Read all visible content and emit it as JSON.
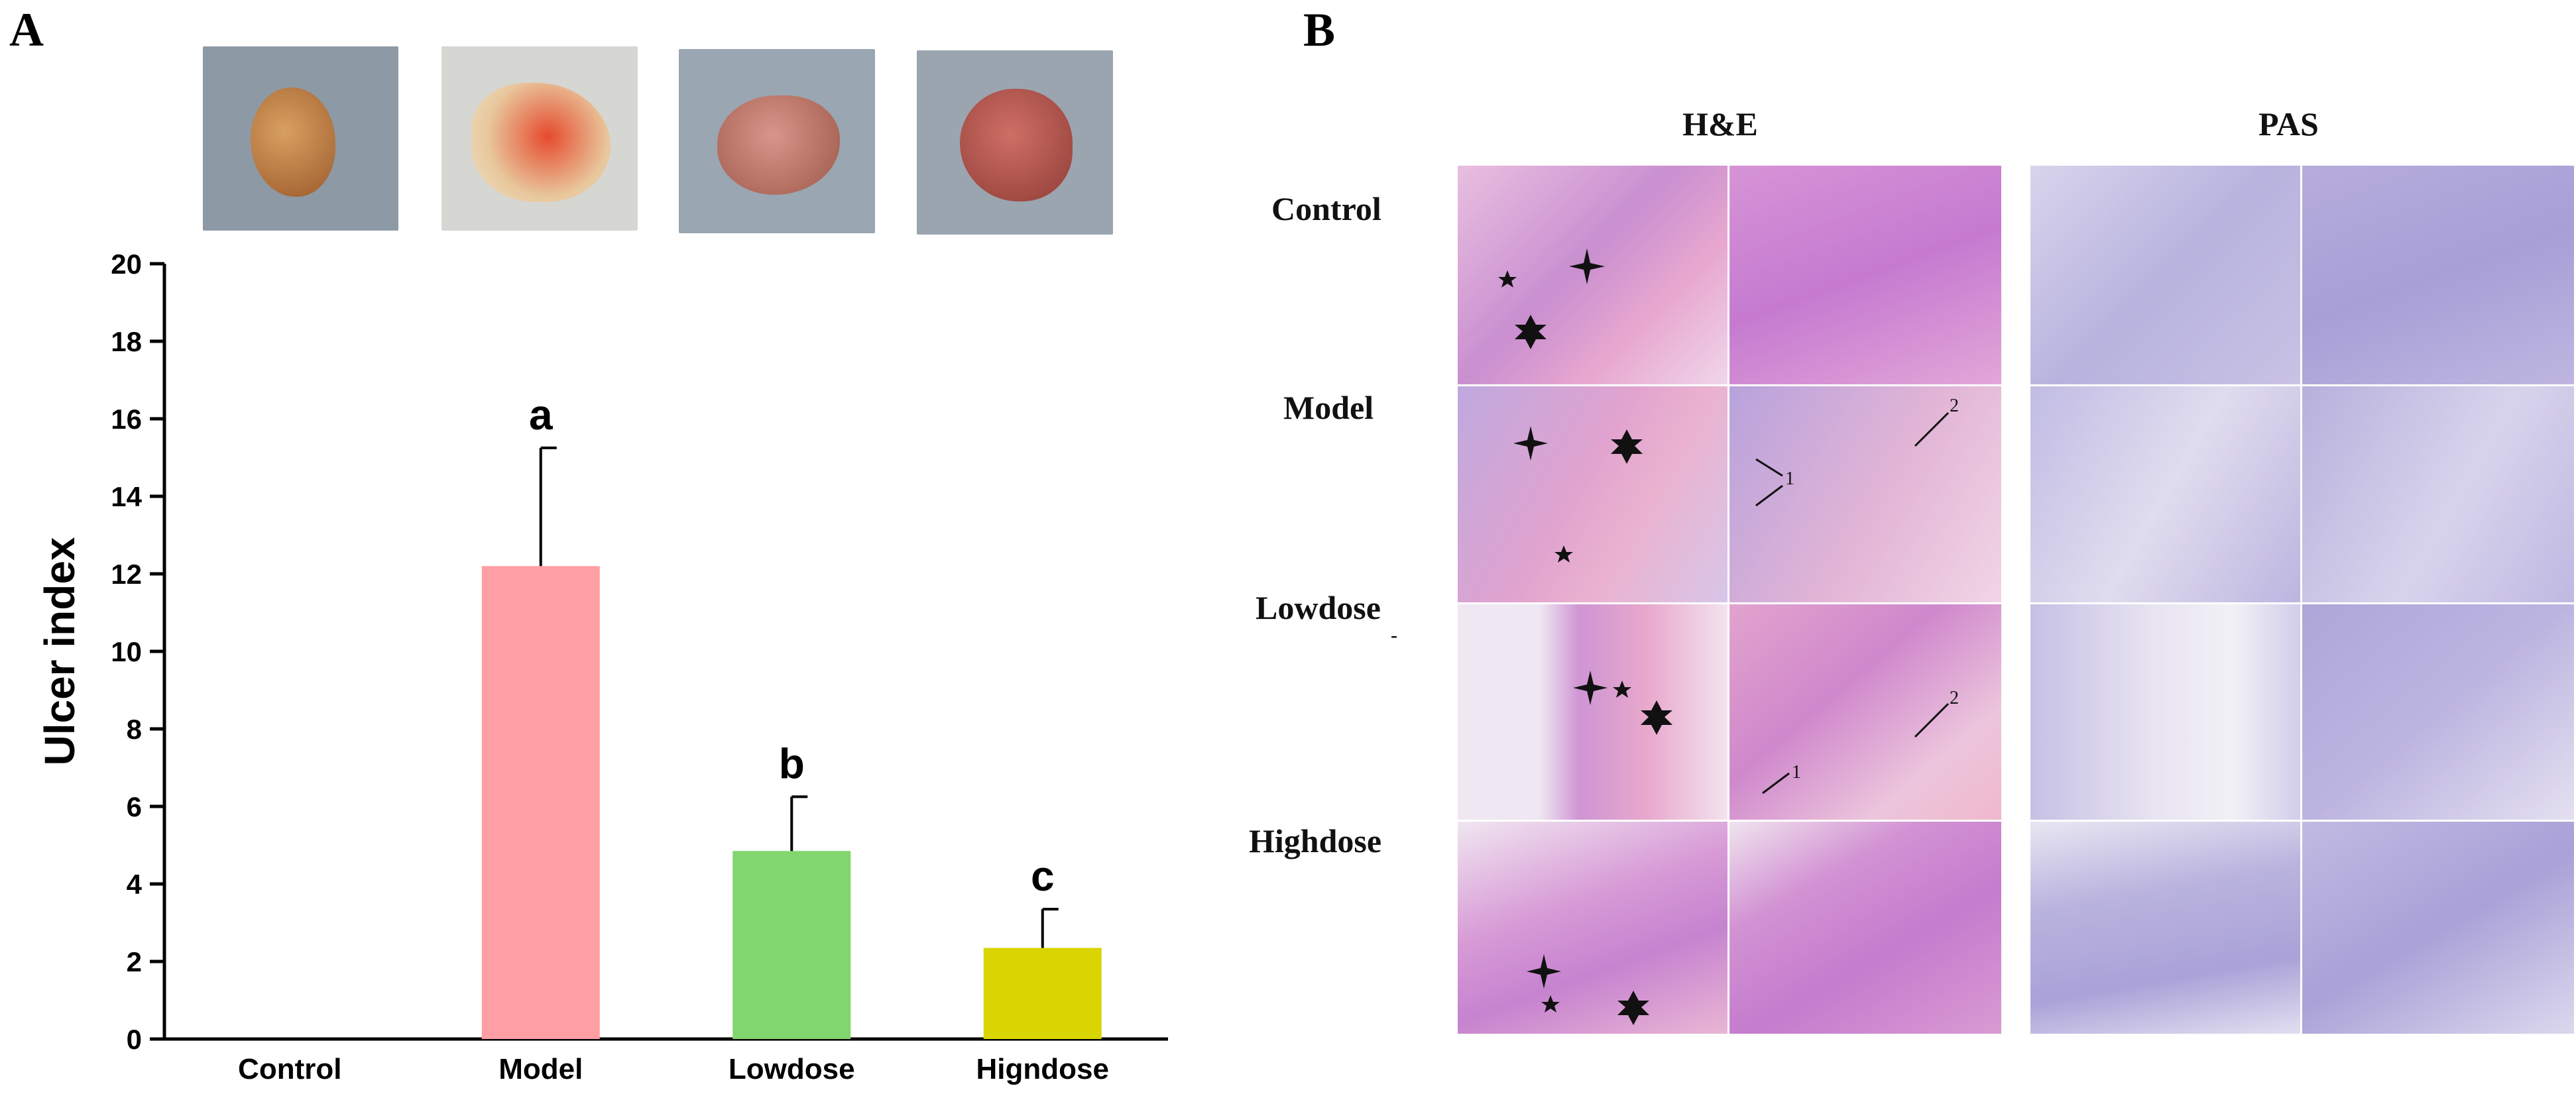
{
  "panels": {
    "a_label": "A",
    "b_label": "B"
  },
  "stomach_photos": [
    {
      "group": "Control",
      "color": "#c9863f"
    },
    {
      "group": "Model",
      "color": "#e0573a"
    },
    {
      "group": "Lowdose",
      "color": "#c98066"
    },
    {
      "group": "Higndose",
      "color": "#b5534a"
    }
  ],
  "chart_data": {
    "type": "bar",
    "categories": [
      "Control",
      "Model",
      "Lowdose",
      "Higndose"
    ],
    "values": [
      0,
      12.2,
      4.85,
      2.35
    ],
    "errors": [
      0,
      3.05,
      1.4,
      1.0
    ],
    "significance_letters": [
      "",
      "a",
      "b",
      "c"
    ],
    "colors": [
      "#cccccc",
      "#ff9fa3",
      "#82d66e",
      "#d8d500"
    ],
    "ylabel": "Ulcer index",
    "xlabel": "",
    "ylim": [
      0,
      20
    ],
    "yticks": [
      "0",
      "2",
      "4",
      "6",
      "8",
      "10",
      "12",
      "14",
      "16",
      "18",
      "20"
    ],
    "grid": false
  },
  "histology": {
    "column_headers": [
      "H&E",
      "PAS"
    ],
    "row_labels": [
      "Control",
      "Model",
      "Lowdose",
      "Highdose"
    ],
    "stray_mark": "-",
    "annotation_numbers": {
      "model_arrow_1": "1",
      "model_arrow_2": "2",
      "lowdose_arrow_1": "1",
      "lowdose_arrow_2": "2"
    },
    "he_color": "#d98bc5",
    "pas_color": "#b3b0dd"
  }
}
